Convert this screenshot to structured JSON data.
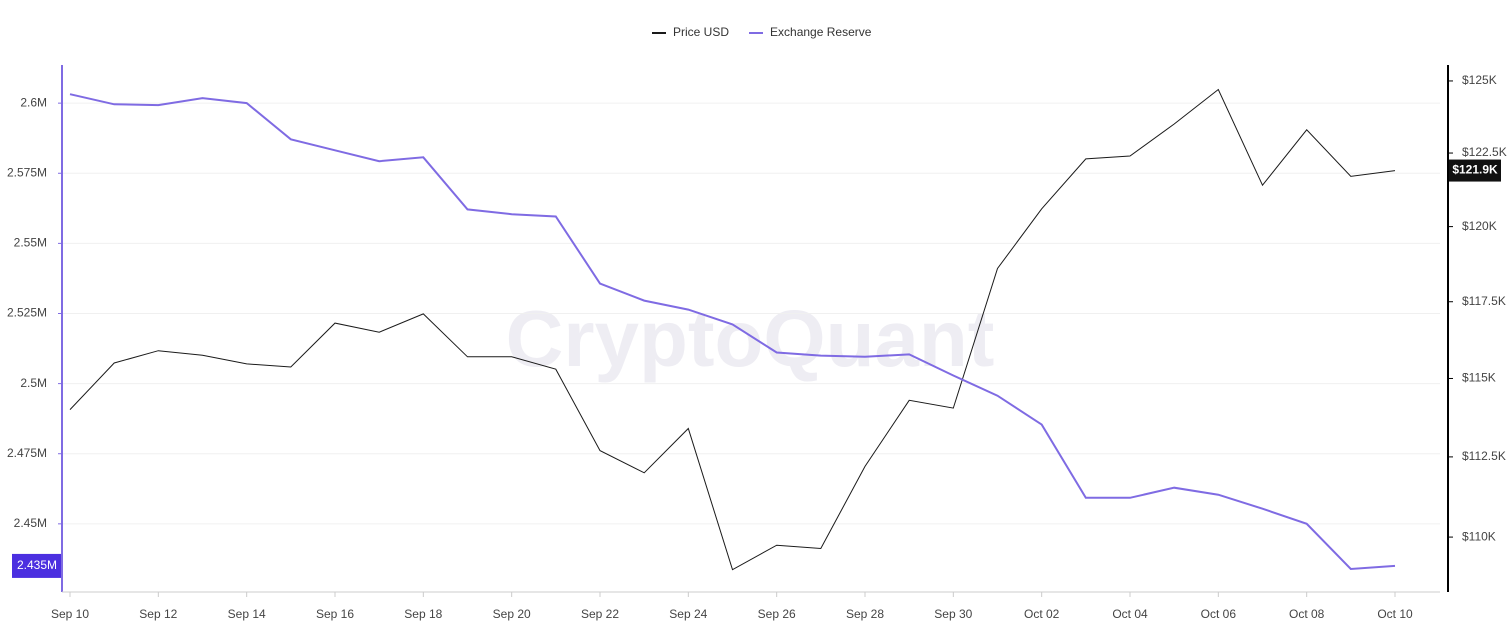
{
  "chart_data": {
    "type": "line",
    "watermark": "CryptoQuant",
    "categories": [
      "Sep 10",
      null,
      "Sep 12",
      null,
      "Sep 14",
      null,
      "Sep 16",
      null,
      "Sep 18",
      null,
      "Sep 20",
      null,
      "Sep 22",
      null,
      "Sep 24",
      null,
      "Sep 26",
      null,
      "Sep 28",
      null,
      "Sep 30",
      null,
      "Oct 02",
      null,
      "Oct 04",
      null,
      "Oct 06",
      null,
      "Oct 08",
      null,
      "Oct 10"
    ],
    "series": [
      {
        "name": "Price USD",
        "color": "#1a1a1a",
        "axis": "y2",
        "values": [
          114000,
          115500,
          115900,
          115750,
          115470,
          115370,
          116800,
          116500,
          117100,
          115700,
          115700,
          115300,
          112700,
          112000,
          113400,
          109000,
          109750,
          109650,
          112200,
          114300,
          114050,
          118600,
          120600,
          122300,
          122400,
          123500,
          124700,
          121400,
          123300,
          121700,
          121900
        ],
        "value_labels": [
          null,
          null,
          null,
          null,
          null,
          null,
          null,
          null,
          null,
          null,
          null,
          null,
          null,
          null,
          null,
          null,
          null,
          null,
          null,
          null,
          null,
          null,
          null,
          null,
          null,
          null,
          null,
          null,
          null,
          null,
          "$121.9K"
        ]
      },
      {
        "name": "Exchange Reserve",
        "color": "#7f6be3",
        "values": [
          2603200,
          2599600,
          2599300,
          2601800,
          2600000,
          2587100,
          2583200,
          2579300,
          2580700,
          2562100,
          2560400,
          2559600,
          2535700,
          2529600,
          2526400,
          2521100,
          2511100,
          2510000,
          2509600,
          2510400,
          2502900,
          2495700,
          2485400,
          2459300,
          2459300,
          2462900,
          2460400,
          2455400,
          2450000,
          2433900,
          2435000
        ],
        "value_labels": [
          null,
          null,
          null,
          null,
          null,
          null,
          null,
          null,
          null,
          null,
          null,
          null,
          null,
          null,
          null,
          null,
          null,
          null,
          null,
          null,
          null,
          null,
          null,
          null,
          null,
          null,
          null,
          null,
          null,
          null,
          "2.435M"
        ]
      }
    ],
    "ylim": [
      2425700,
      2613600
    ],
    "yticks": [
      {
        "value": 2450000,
        "label": "2.45M"
      },
      {
        "value": 2475000,
        "label": "2.475M"
      },
      {
        "value": 2500000,
        "label": "2.5M"
      },
      {
        "value": 2525000,
        "label": "2.525M"
      },
      {
        "value": 2550000,
        "label": "2.55M"
      },
      {
        "value": 2575000,
        "label": "2.575M"
      },
      {
        "value": 2600000,
        "label": "2.6M"
      }
    ],
    "y2lim": [
      108320,
      125560
    ],
    "y2log": true,
    "y2ticks": [
      {
        "value": 110000,
        "label": "$110K"
      },
      {
        "value": 112500,
        "label": "$112.5K"
      },
      {
        "value": 115000,
        "label": "$115K"
      },
      {
        "value": 117500,
        "label": "$117.5K"
      },
      {
        "value": 120000,
        "label": "$120K"
      },
      {
        "value": 122500,
        "label": "$122.5K"
      },
      {
        "value": 125000,
        "label": "$125K"
      }
    ],
    "grid": true,
    "legend": "top"
  }
}
